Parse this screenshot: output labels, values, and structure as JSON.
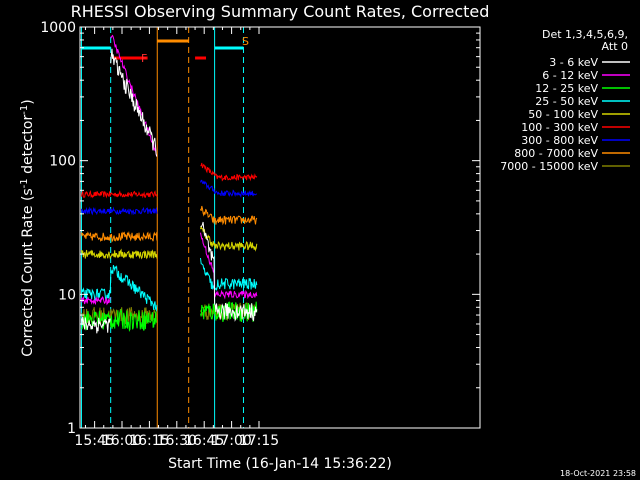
{
  "chart_data": {
    "type": "line",
    "title": "RHESSI Observing Summary Count Rates, Corrected",
    "xlabel": "Start Time (16-Jan-14 15:36:22)",
    "ylabel_main": "Corrected Count Rate (s",
    "ylabel_sup1": "-1",
    "ylabel_mid": " detector",
    "ylabel_sup2": "-1",
    "ylabel_end": ")",
    "yscale": "log",
    "ylim": [
      1,
      1000
    ],
    "xlim_min": [
      937,
      1156
    ],
    "x_ticks": [
      {
        "min": 945,
        "label": "15:45"
      },
      {
        "min": 960,
        "label": "16:00"
      },
      {
        "min": 975,
        "label": "16:15"
      },
      {
        "min": 990,
        "label": "16:30"
      },
      {
        "min": 1005,
        "label": "16:45"
      },
      {
        "min": 1020,
        "label": "17:00"
      },
      {
        "min": 1035,
        "label": "17:15"
      }
    ],
    "y_ticks": [
      {
        "v": 1,
        "label": "1"
      },
      {
        "v": 10,
        "label": "10"
      },
      {
        "v": 100,
        "label": "100"
      },
      {
        "v": 1000,
        "label": "1000"
      }
    ],
    "legend_header": [
      "Det 1,3,4,5,6,9,",
      "Att 0"
    ],
    "series": [
      {
        "name": "3 - 6 keV",
        "color": "#ffffff"
      },
      {
        "name": "6 - 12 keV",
        "color": "#ff00ff"
      },
      {
        "name": "12 - 25 keV",
        "color": "#00ff00"
      },
      {
        "name": "25 - 50 keV",
        "color": "#00ffff"
      },
      {
        "name": "50 - 100 keV",
        "color": "#d4d400"
      },
      {
        "name": "100 - 300 keV",
        "color": "#ff0000"
      },
      {
        "name": "300 - 800 keV",
        "color": "#0000ff"
      },
      {
        "name": "800 - 7000 keV",
        "color": "#ff8c00"
      },
      {
        "name": "7000 - 15000 keV",
        "color": "#808000"
      }
    ],
    "annotations": {
      "flare_flag": "F",
      "saa_flag": "S",
      "timestamp": "18-Oct-2021 23:58"
    }
  }
}
